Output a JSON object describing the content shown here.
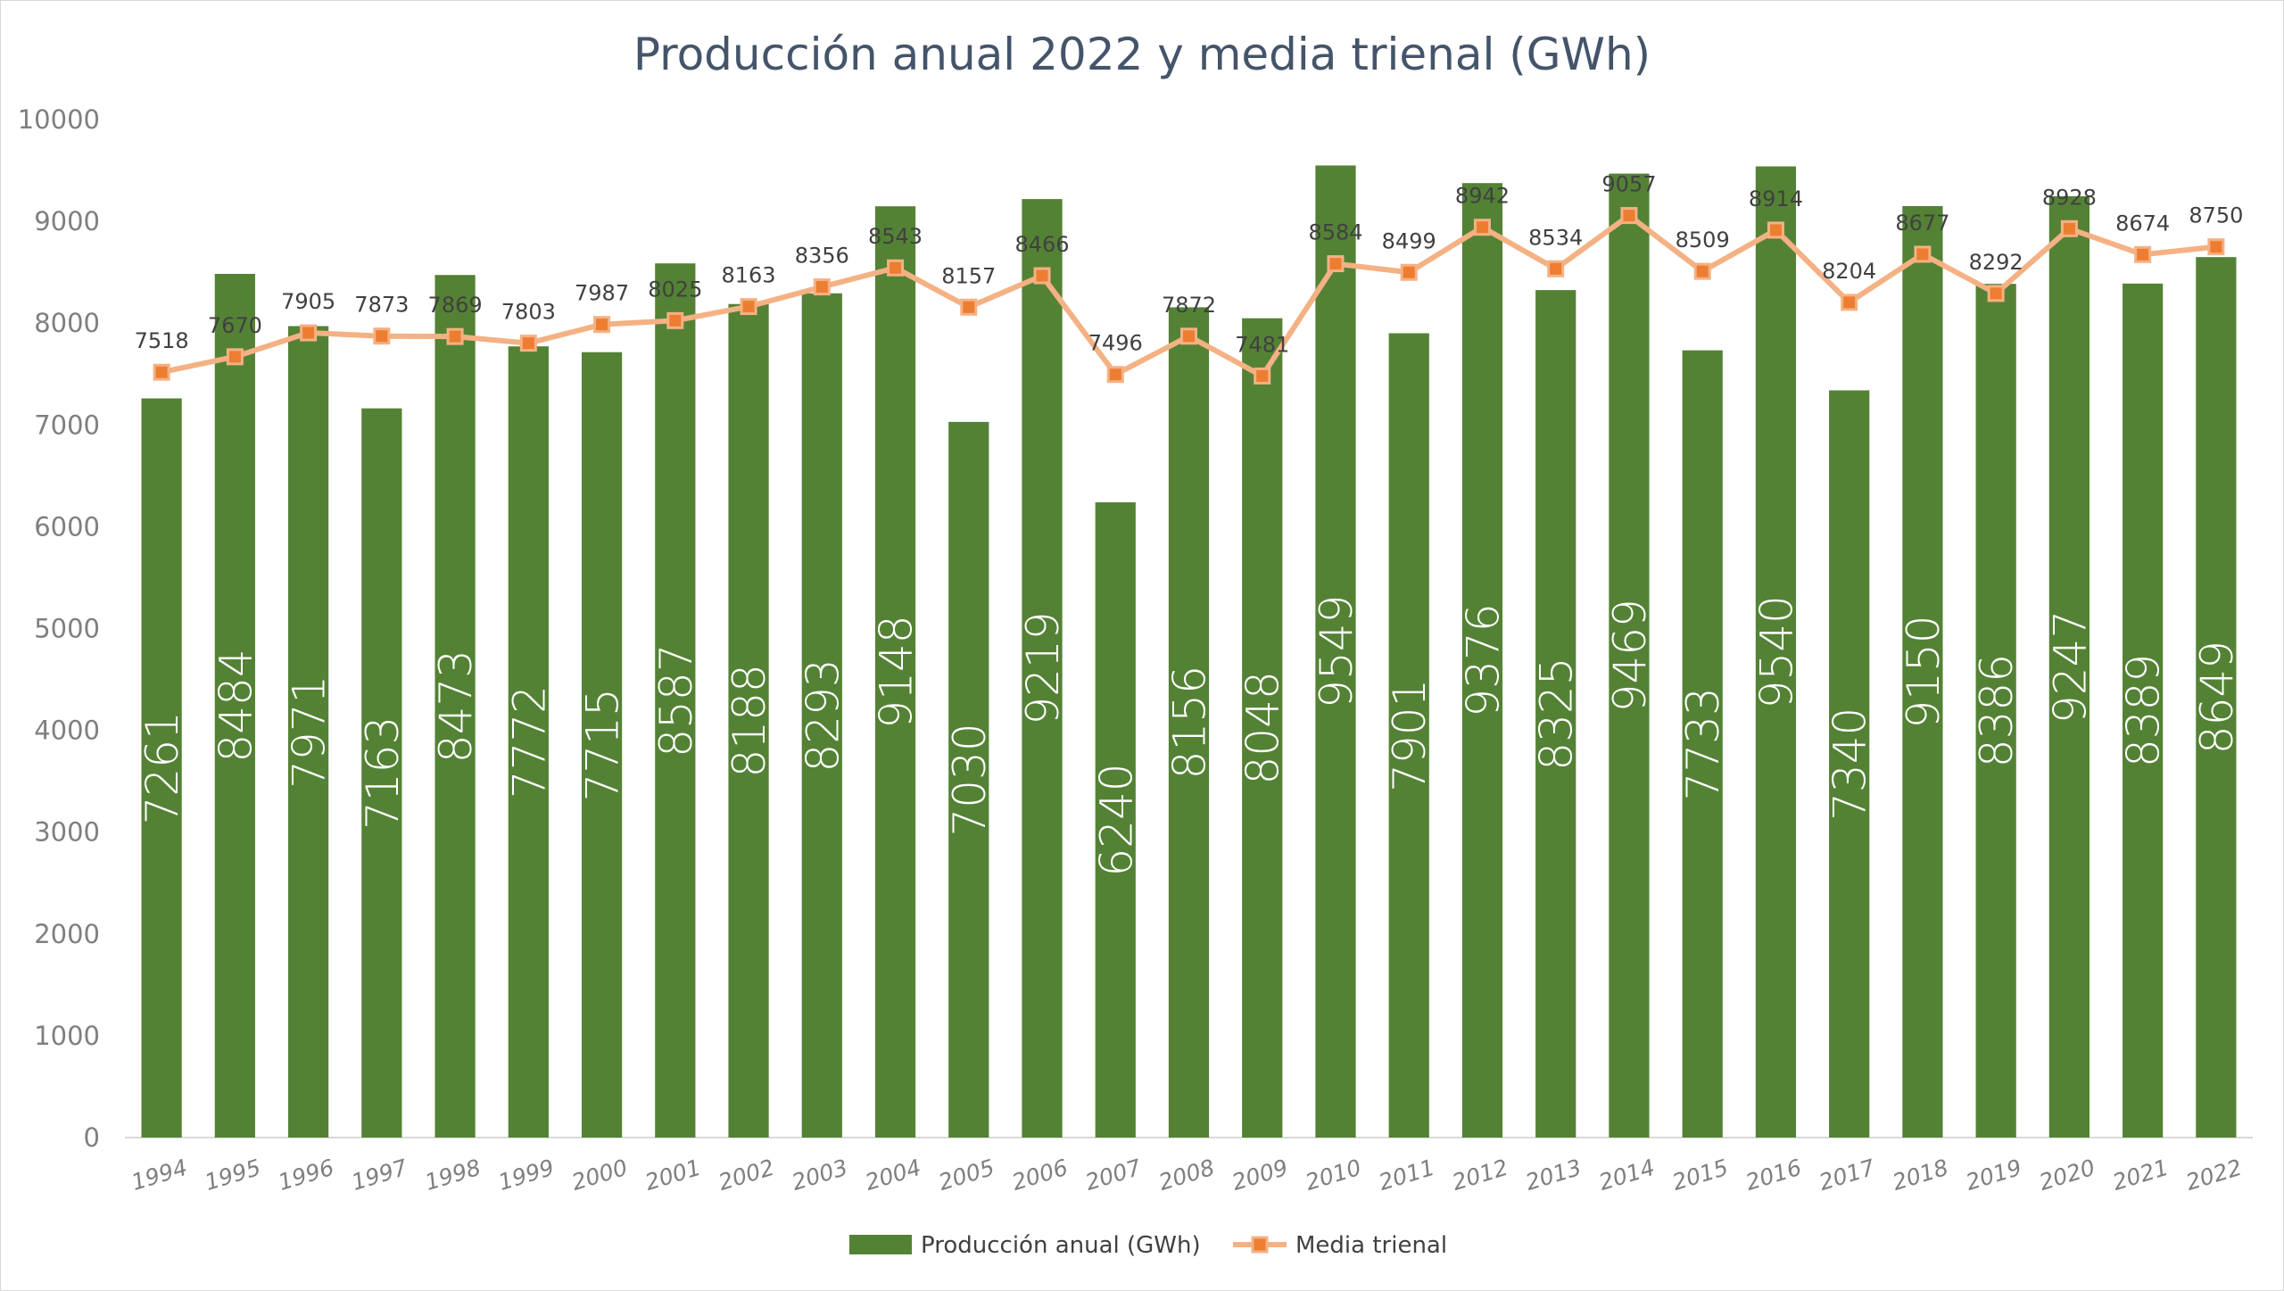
{
  "chart_data": {
    "type": "bar",
    "title": "Producción anual 2022 y media trienal (GWh)",
    "categories": [
      "1994",
      "1995",
      "1996",
      "1997",
      "1998",
      "1999",
      "2000",
      "2001",
      "2002",
      "2003",
      "2004",
      "2005",
      "2006",
      "2007",
      "2008",
      "2009",
      "2010",
      "2011",
      "2012",
      "2013",
      "2014",
      "2015",
      "2016",
      "2017",
      "2018",
      "2019",
      "2020",
      "2021",
      "2022"
    ],
    "series": [
      {
        "name": "Producción anual (GWh)",
        "type": "bar",
        "color": "#548235",
        "values": [
          7261,
          8484,
          7971,
          7163,
          8473,
          7772,
          7715,
          8587,
          8188,
          8293,
          9148,
          7030,
          9219,
          6240,
          8156,
          8048,
          9549,
          7901,
          9376,
          8325,
          9469,
          7733,
          9540,
          7340,
          9150,
          8386,
          9247,
          8389,
          8649
        ]
      },
      {
        "name": "Media trienal",
        "type": "line",
        "color": "#f4b183",
        "marker_color": "#ed7d31",
        "values": [
          7518,
          7670,
          7905,
          7873,
          7869,
          7803,
          7987,
          8025,
          8163,
          8356,
          8543,
          8157,
          8466,
          7496,
          7872,
          7481,
          8584,
          8499,
          8942,
          8534,
          9057,
          8509,
          8914,
          8204,
          8677,
          8292,
          8928,
          8674,
          8750
        ]
      }
    ],
    "yticks": [
      "0",
      "1000",
      "2000",
      "3000",
      "4000",
      "5000",
      "6000",
      "7000",
      "8000",
      "9000",
      "10000"
    ],
    "ylim": [
      0,
      10000
    ],
    "grid": false,
    "legend_position": "bottom"
  }
}
